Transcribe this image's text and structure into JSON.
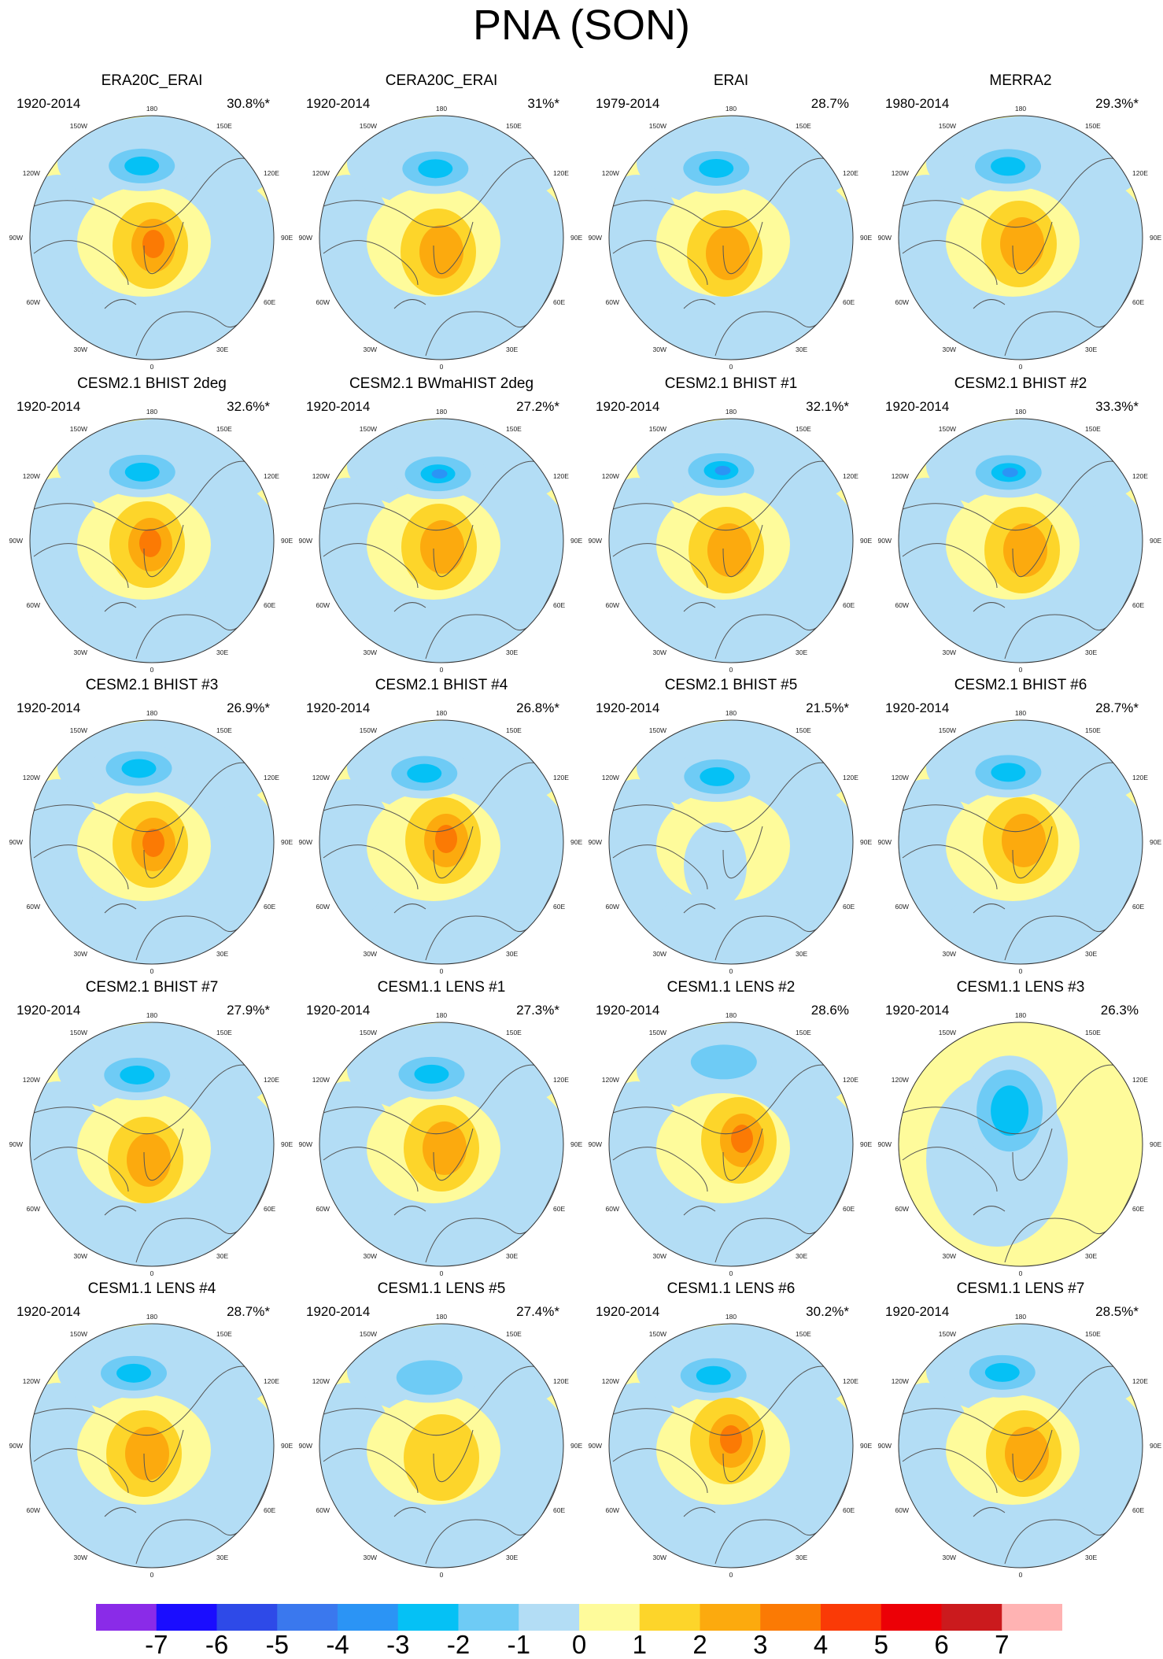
{
  "title": "PNA (SON)",
  "panels": [
    {
      "title": "ERA20C_ERAI",
      "period": "1920-2014",
      "pct": "30.8%*"
    },
    {
      "title": "CERA20C_ERAI",
      "period": "1920-2014",
      "pct": "31%*"
    },
    {
      "title": "ERAI",
      "period": "1979-2014",
      "pct": "28.7%"
    },
    {
      "title": "MERRA2",
      "period": "1980-2014",
      "pct": "29.3%*"
    },
    {
      "title": "CESM2.1 BHIST 2deg",
      "period": "1920-2014",
      "pct": "32.6%*"
    },
    {
      "title": "CESM2.1 BWmaHIST 2deg",
      "period": "1920-2014",
      "pct": "27.2%*"
    },
    {
      "title": "CESM2.1 BHIST #1",
      "period": "1920-2014",
      "pct": "32.1%*"
    },
    {
      "title": "CESM2.1 BHIST #2",
      "period": "1920-2014",
      "pct": "33.3%*"
    },
    {
      "title": "CESM2.1 BHIST #3",
      "period": "1920-2014",
      "pct": "26.9%*"
    },
    {
      "title": "CESM2.1 BHIST #4",
      "period": "1920-2014",
      "pct": "26.8%*"
    },
    {
      "title": "CESM2.1 BHIST #5",
      "period": "1920-2014",
      "pct": "21.5%*"
    },
    {
      "title": "CESM2.1 BHIST #6",
      "period": "1920-2014",
      "pct": "28.7%*"
    },
    {
      "title": "CESM2.1 BHIST #7",
      "period": "1920-2014",
      "pct": "27.9%*"
    },
    {
      "title": "CESM1.1 LENS #1",
      "period": "1920-2014",
      "pct": "27.3%*"
    },
    {
      "title": "CESM1.1 LENS #2",
      "period": "1920-2014",
      "pct": "28.6%"
    },
    {
      "title": "CESM1.1 LENS #3",
      "period": "1920-2014",
      "pct": "26.3%"
    },
    {
      "title": "CESM1.1 LENS #4",
      "period": "1920-2014",
      "pct": "28.7%*"
    },
    {
      "title": "CESM1.1 LENS #5",
      "period": "1920-2014",
      "pct": "27.4%*"
    },
    {
      "title": "CESM1.1 LENS #6",
      "period": "1920-2014",
      "pct": "30.2%*"
    },
    {
      "title": "CESM1.1 LENS #7",
      "period": "1920-2014",
      "pct": "28.5%*"
    }
  ],
  "longitude_labels": [
    "180",
    "150E",
    "120E",
    "90E",
    "60E",
    "30E",
    "0",
    "30W",
    "60W",
    "90W",
    "120W",
    "150W"
  ],
  "colorbar": {
    "labels": [
      "-7",
      "-6",
      "-5",
      "-4",
      "-3",
      "-2",
      "-1",
      "0",
      "1",
      "2",
      "3",
      "4",
      "5",
      "6",
      "7"
    ],
    "colors": [
      "#8a2be8",
      "#1a0dff",
      "#2e4ae8",
      "#3a78ee",
      "#2b94f5",
      "#05c1f5",
      "#6ecbf5",
      "#b3ddf5",
      "#fefb9b",
      "#fdd52a",
      "#fcaa0e",
      "#fb7a04",
      "#fa3a06",
      "#ec0006",
      "#cb1a1d",
      "#ffb3b3"
    ]
  },
  "map_colors": {
    "yellow": "#fefb9b",
    "light_blue": "#b3ddf5",
    "sky": "#6ecbf5",
    "cyan": "#05c1f5",
    "gold": "#fdd52a",
    "orange": "#fcaa0e",
    "dark_orange": "#fb7a04",
    "land": "#555555"
  }
}
